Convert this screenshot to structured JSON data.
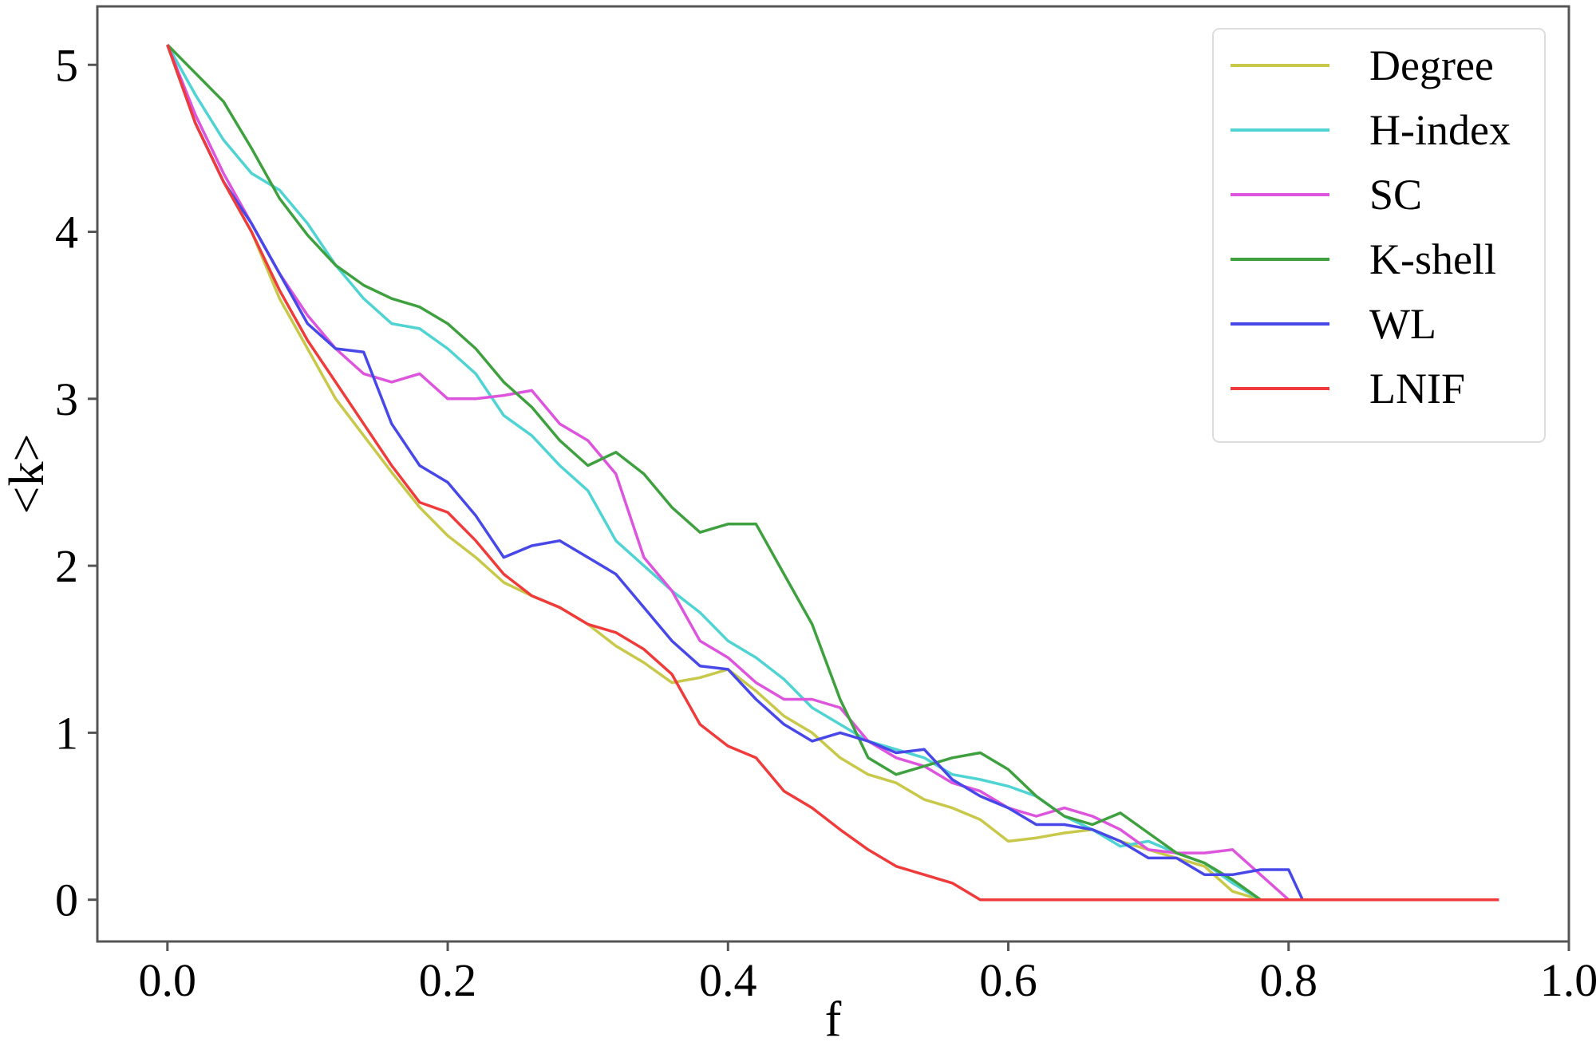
{
  "chart_data": {
    "type": "line",
    "title": "",
    "xlabel": "f",
    "ylabel": "<k>",
    "xlim": [
      -0.05,
      1.0
    ],
    "ylim": [
      -0.25,
      5.35
    ],
    "xticks": [
      "0.0",
      "0.2",
      "0.4",
      "0.6",
      "0.8",
      "1.0"
    ],
    "xtick_values": [
      0.0,
      0.2,
      0.4,
      0.6,
      0.8,
      1.0
    ],
    "yticks": [
      "0",
      "1",
      "2",
      "3",
      "4",
      "5"
    ],
    "ytick_values": [
      0,
      1,
      2,
      3,
      4,
      5
    ],
    "grid": false,
    "legend_position": "top-right",
    "series": [
      {
        "name": "Degree",
        "color": "#c8c84a",
        "x": [
          0.0,
          0.02,
          0.04,
          0.06,
          0.08,
          0.1,
          0.12,
          0.14,
          0.16,
          0.18,
          0.2,
          0.22,
          0.24,
          0.26,
          0.28,
          0.3,
          0.32,
          0.34,
          0.36,
          0.38,
          0.4,
          0.42,
          0.44,
          0.46,
          0.48,
          0.5,
          0.52,
          0.54,
          0.56,
          0.58,
          0.6,
          0.62,
          0.64,
          0.66,
          0.68,
          0.7,
          0.72,
          0.74,
          0.76,
          0.78,
          0.8,
          0.85,
          0.9,
          0.95
        ],
        "values": [
          5.12,
          4.65,
          4.3,
          4.0,
          3.6,
          3.3,
          3.0,
          2.78,
          2.56,
          2.35,
          2.18,
          2.05,
          1.9,
          1.82,
          1.75,
          1.65,
          1.52,
          1.42,
          1.3,
          1.33,
          1.38,
          1.25,
          1.1,
          1.0,
          0.85,
          0.75,
          0.7,
          0.6,
          0.55,
          0.48,
          0.35,
          0.37,
          0.4,
          0.42,
          0.35,
          0.3,
          0.25,
          0.2,
          0.05,
          0.0,
          0.0,
          0.0,
          0.0,
          0.0
        ]
      },
      {
        "name": "H-index",
        "color": "#4fd3d3",
        "x": [
          0.0,
          0.02,
          0.04,
          0.06,
          0.08,
          0.1,
          0.12,
          0.14,
          0.16,
          0.18,
          0.2,
          0.22,
          0.24,
          0.26,
          0.28,
          0.3,
          0.32,
          0.34,
          0.36,
          0.38,
          0.4,
          0.42,
          0.44,
          0.46,
          0.48,
          0.5,
          0.52,
          0.54,
          0.56,
          0.58,
          0.6,
          0.62,
          0.64,
          0.66,
          0.68,
          0.7,
          0.72,
          0.74,
          0.76,
          0.78,
          0.8,
          0.85,
          0.9,
          0.95
        ],
        "values": [
          5.12,
          4.82,
          4.55,
          4.35,
          4.25,
          4.05,
          3.8,
          3.6,
          3.45,
          3.42,
          3.3,
          3.15,
          2.9,
          2.78,
          2.6,
          2.45,
          2.15,
          2.0,
          1.85,
          1.72,
          1.55,
          1.45,
          1.32,
          1.15,
          1.05,
          0.95,
          0.9,
          0.85,
          0.75,
          0.72,
          0.68,
          0.62,
          0.5,
          0.42,
          0.32,
          0.35,
          0.28,
          0.22,
          0.1,
          0.0,
          0.0,
          0.0,
          0.0,
          0.0
        ]
      },
      {
        "name": "SC",
        "color": "#dd55dd",
        "x": [
          0.0,
          0.02,
          0.04,
          0.06,
          0.08,
          0.1,
          0.12,
          0.14,
          0.16,
          0.18,
          0.2,
          0.22,
          0.24,
          0.26,
          0.28,
          0.3,
          0.32,
          0.34,
          0.36,
          0.38,
          0.4,
          0.42,
          0.44,
          0.46,
          0.48,
          0.5,
          0.52,
          0.54,
          0.56,
          0.58,
          0.6,
          0.62,
          0.64,
          0.66,
          0.68,
          0.7,
          0.72,
          0.74,
          0.76,
          0.78,
          0.8,
          0.85,
          0.9,
          0.95
        ],
        "values": [
          5.12,
          4.7,
          4.35,
          4.05,
          3.75,
          3.5,
          3.3,
          3.15,
          3.1,
          3.15,
          3.0,
          3.0,
          3.02,
          3.05,
          2.85,
          2.75,
          2.55,
          2.05,
          1.85,
          1.55,
          1.45,
          1.3,
          1.2,
          1.2,
          1.15,
          0.95,
          0.85,
          0.8,
          0.7,
          0.65,
          0.55,
          0.5,
          0.55,
          0.5,
          0.42,
          0.3,
          0.28,
          0.28,
          0.3,
          0.15,
          0.0,
          0.0,
          0.0,
          0.0
        ]
      },
      {
        "name": "K-shell",
        "color": "#3fa03f",
        "x": [
          0.0,
          0.02,
          0.04,
          0.06,
          0.08,
          0.1,
          0.12,
          0.14,
          0.16,
          0.18,
          0.2,
          0.22,
          0.24,
          0.26,
          0.28,
          0.3,
          0.32,
          0.34,
          0.36,
          0.38,
          0.4,
          0.42,
          0.44,
          0.46,
          0.48,
          0.5,
          0.52,
          0.54,
          0.56,
          0.58,
          0.6,
          0.62,
          0.64,
          0.66,
          0.68,
          0.7,
          0.72,
          0.74,
          0.76,
          0.78,
          0.8,
          0.85,
          0.9,
          0.95
        ],
        "values": [
          5.12,
          4.95,
          4.78,
          4.5,
          4.2,
          3.98,
          3.8,
          3.68,
          3.6,
          3.55,
          3.45,
          3.3,
          3.1,
          2.95,
          2.75,
          2.6,
          2.68,
          2.55,
          2.35,
          2.2,
          2.25,
          2.25,
          1.95,
          1.65,
          1.2,
          0.85,
          0.75,
          0.8,
          0.85,
          0.88,
          0.78,
          0.62,
          0.5,
          0.45,
          0.52,
          0.4,
          0.28,
          0.22,
          0.12,
          0.0,
          0.0,
          0.0,
          0.0,
          0.0
        ]
      },
      {
        "name": "WL",
        "color": "#4848e8",
        "x": [
          0.0,
          0.02,
          0.04,
          0.06,
          0.08,
          0.1,
          0.12,
          0.14,
          0.16,
          0.18,
          0.2,
          0.22,
          0.24,
          0.26,
          0.28,
          0.3,
          0.32,
          0.34,
          0.36,
          0.38,
          0.4,
          0.42,
          0.44,
          0.46,
          0.48,
          0.5,
          0.52,
          0.54,
          0.56,
          0.58,
          0.6,
          0.62,
          0.64,
          0.66,
          0.68,
          0.7,
          0.72,
          0.74,
          0.76,
          0.78,
          0.8,
          0.81,
          0.85,
          0.9,
          0.95
        ],
        "values": [
          5.12,
          4.65,
          4.3,
          4.05,
          3.75,
          3.45,
          3.3,
          3.28,
          2.85,
          2.6,
          2.5,
          2.3,
          2.05,
          2.12,
          2.15,
          2.05,
          1.95,
          1.75,
          1.55,
          1.4,
          1.38,
          1.2,
          1.05,
          0.95,
          1.0,
          0.95,
          0.88,
          0.9,
          0.72,
          0.62,
          0.55,
          0.45,
          0.45,
          0.42,
          0.35,
          0.25,
          0.25,
          0.15,
          0.15,
          0.18,
          0.18,
          0.0,
          0.0,
          0.0,
          0.0
        ]
      },
      {
        "name": "LNIF",
        "color": "#ef3b3b",
        "x": [
          0.0,
          0.02,
          0.04,
          0.06,
          0.08,
          0.1,
          0.12,
          0.14,
          0.16,
          0.18,
          0.2,
          0.22,
          0.24,
          0.26,
          0.28,
          0.3,
          0.32,
          0.34,
          0.36,
          0.38,
          0.4,
          0.42,
          0.44,
          0.46,
          0.48,
          0.5,
          0.52,
          0.54,
          0.56,
          0.58,
          0.6,
          0.62,
          0.64,
          0.66,
          0.68,
          0.7,
          0.72,
          0.74,
          0.76,
          0.78,
          0.8,
          0.85,
          0.9,
          0.95
        ],
        "values": [
          5.12,
          4.65,
          4.3,
          4.0,
          3.65,
          3.35,
          3.1,
          2.85,
          2.6,
          2.38,
          2.32,
          2.15,
          1.95,
          1.82,
          1.75,
          1.65,
          1.6,
          1.5,
          1.35,
          1.05,
          0.92,
          0.85,
          0.65,
          0.55,
          0.42,
          0.3,
          0.2,
          0.15,
          0.1,
          0.0,
          0.0,
          0.0,
          0.0,
          0.0,
          0.0,
          0.0,
          0.0,
          0.0,
          0.0,
          0.0,
          0.0,
          0.0,
          0.0,
          0.0
        ]
      }
    ]
  }
}
